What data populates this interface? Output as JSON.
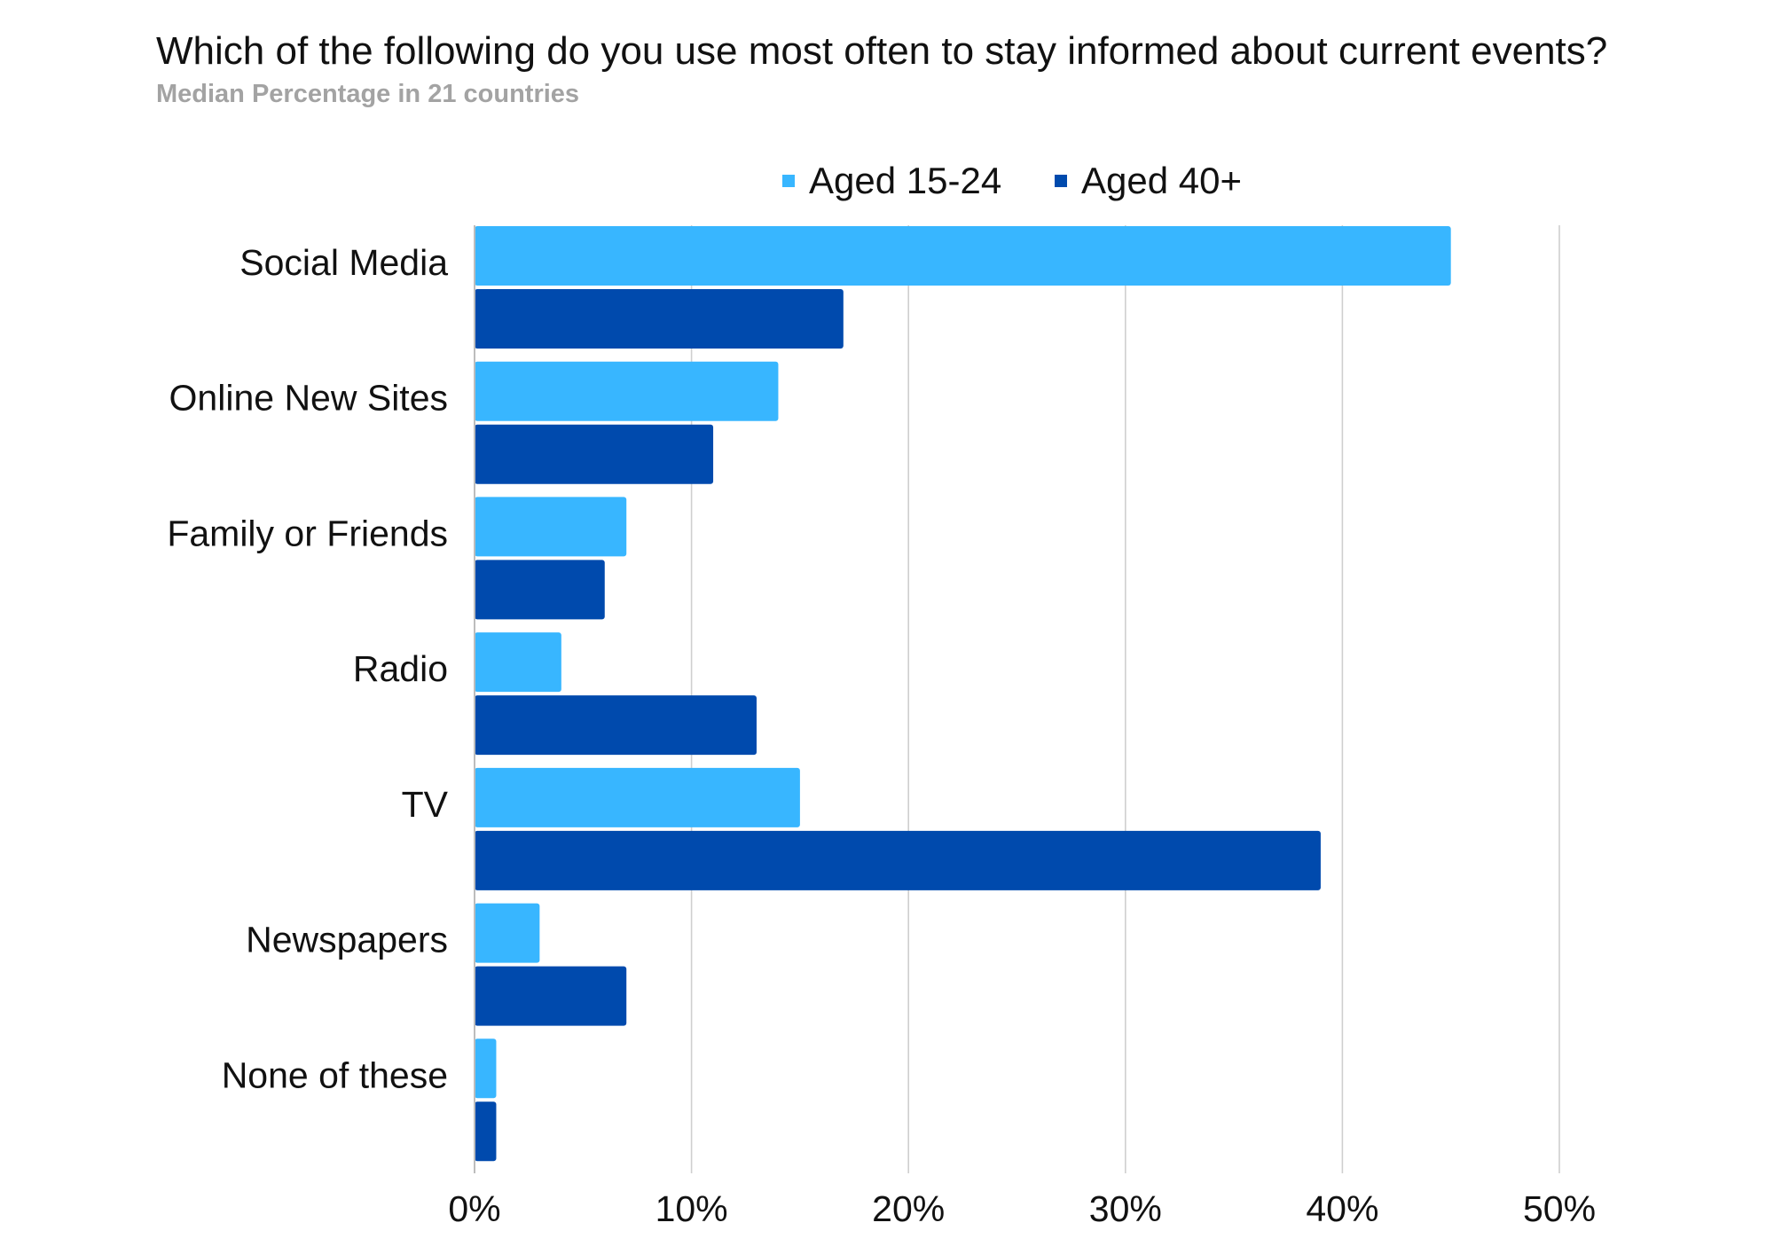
{
  "chart_data": {
    "type": "bar",
    "orientation": "horizontal",
    "title": "Which of the following do you use most often to stay informed about current events?",
    "subtitle": "Median Percentage in 21 countries",
    "categories": [
      "Social Media",
      "Online New Sites",
      "Family or Friends",
      "Radio",
      "TV",
      "Newspapers",
      "None of these"
    ],
    "series": [
      {
        "name": "Aged 15-24",
        "color": "#38b6ff",
        "values": [
          45,
          14,
          7,
          4,
          15,
          3,
          1
        ]
      },
      {
        "name": "Aged 40+",
        "color": "#004aad",
        "values": [
          17,
          11,
          6,
          13,
          39,
          7,
          1
        ]
      }
    ],
    "xlim": [
      0,
      50
    ],
    "x_ticks": [
      0,
      10,
      20,
      30,
      40,
      50
    ],
    "x_tick_labels": [
      "0%",
      "10%",
      "20%",
      "30%",
      "40%",
      "50%"
    ],
    "grid": "vertical",
    "legend_position": "top"
  }
}
